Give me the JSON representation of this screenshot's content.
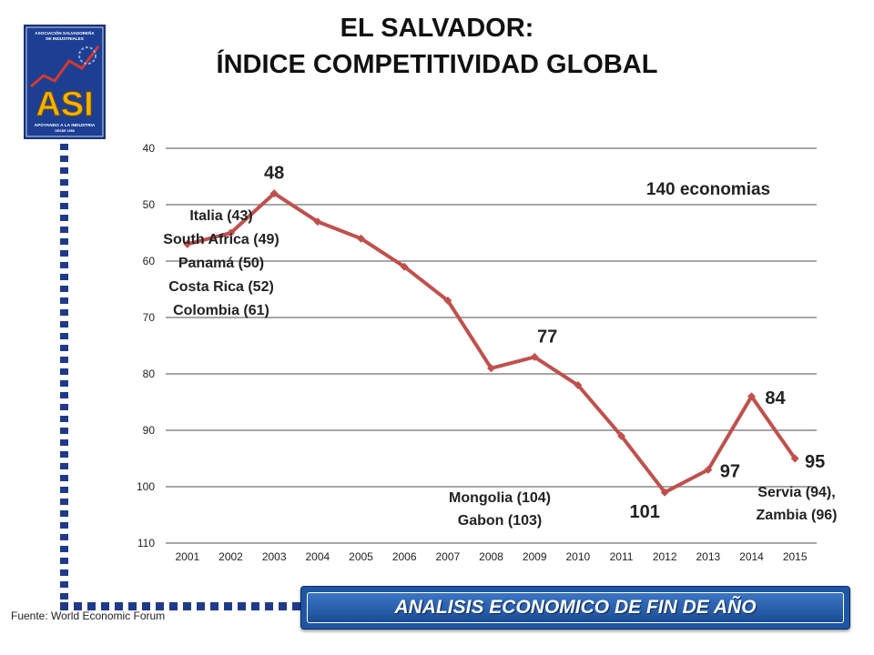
{
  "header": {
    "title_line1": "EL SALVADOR:",
    "title_line2": "ÍNDICE COMPETITIVIDAD GLOBAL"
  },
  "logo": {
    "org_name": "ASOCIACIÓN SALVADOREÑA DE INDUSTRIALES",
    "acronym": "ASI",
    "tagline": "APOYANDO A LA INDUSTRIA",
    "since": "DESDE 1958"
  },
  "footer": {
    "source": "Fuente:  World Economic  Forum",
    "banner": "ANALISIS ECONOMICO DE FIN DE AÑO"
  },
  "colors": {
    "series": "#c0504d",
    "grid": "#8a8a8a",
    "banner": "#1f56a3",
    "dashes": "#1f3a8a"
  },
  "chart_data": {
    "type": "line",
    "x": [
      "2001",
      "2002",
      "2003",
      "2004",
      "2005",
      "2006",
      "2007",
      "2008",
      "2009",
      "2010",
      "2011",
      "2012",
      "2013",
      "2014",
      "2015"
    ],
    "series": [
      {
        "values": [
          57,
          55,
          48,
          53,
          56,
          61,
          67,
          79,
          77,
          82,
          91,
          101,
          97,
          84,
          95
        ]
      }
    ],
    "ylim": [
      40,
      110
    ],
    "y_inverted": true,
    "yticks": [
      40,
      50,
      60,
      70,
      80,
      90,
      100,
      110
    ],
    "grid": true,
    "data_labels": [
      {
        "year": "2003",
        "text": "48"
      },
      {
        "year": "2009",
        "text": "77"
      },
      {
        "year": "2012",
        "text": "101"
      },
      {
        "year": "2013",
        "text": "97"
      },
      {
        "year": "2014",
        "text": "84"
      },
      {
        "year": "2015",
        "text": "95"
      }
    ],
    "annotations": {
      "economies": "140 economias",
      "peers_2003": [
        "Italia (43)",
        "South Africa (49)",
        "Panamá (50)",
        "Costa Rica (52)",
        "Colombia (61)"
      ],
      "peers_2012": [
        "Mongolia (104)",
        "Gabon (103)"
      ],
      "peers_2015": [
        "Servia (94),",
        "Zambia (96)"
      ]
    }
  }
}
